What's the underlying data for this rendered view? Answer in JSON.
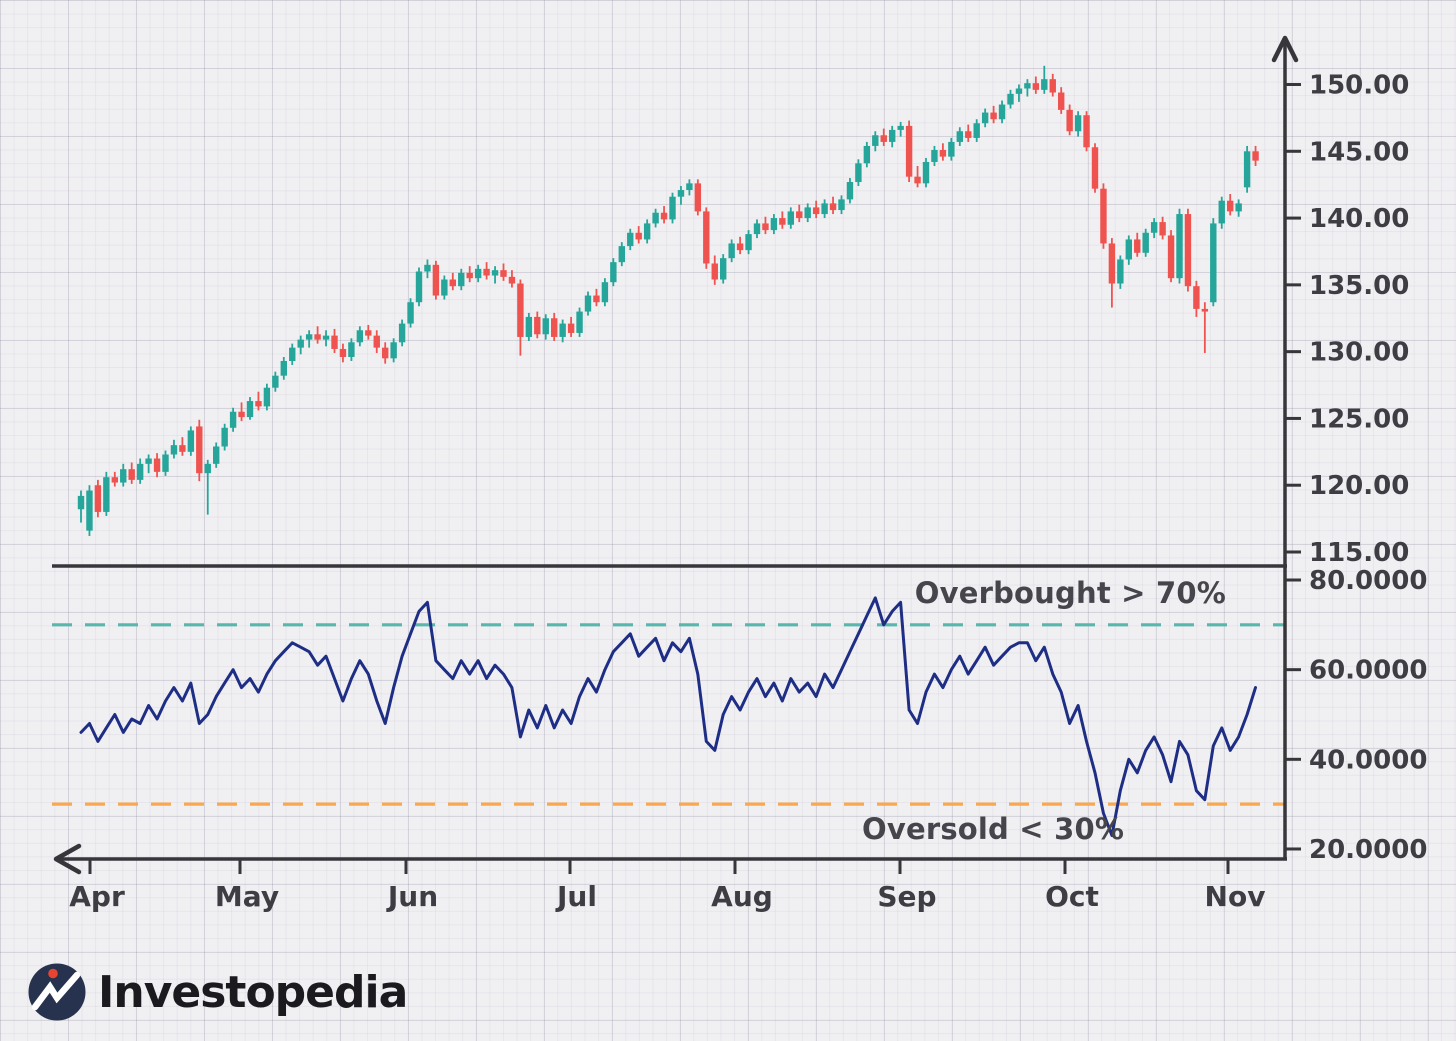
{
  "branding": {
    "logo_text": "Investopedia",
    "logo_navy": "#27324e",
    "logo_red": "#e8442f",
    "logo_text_color": "#1b1a1e"
  },
  "colors": {
    "background": "#f0eff2",
    "candle_up": "#26a69a",
    "candle_down": "#ef5350",
    "rsi_line": "#1f2e85",
    "overbought_line": "#58b7ac",
    "oversold_line": "#f9a84e",
    "axis": "#37363b",
    "tick_text": "#3e3d43"
  },
  "chart_data": {
    "type": "candlestick_with_rsi_line",
    "grid": "graph-paper background",
    "legend_position": "none",
    "x_axis": {
      "tick_labels": [
        "Apr",
        "May",
        "Jun",
        "Jul",
        "Aug",
        "Sep",
        "Oct",
        "Nov"
      ]
    },
    "price_panel": {
      "type": "candlestick",
      "ylim": [
        114,
        152.5
      ],
      "y_ticks": [
        {
          "v": 150,
          "label": "150.00"
        },
        {
          "v": 145,
          "label": "145.00"
        },
        {
          "v": 140,
          "label": "140.00"
        },
        {
          "v": 135,
          "label": "135.00"
        },
        {
          "v": 130,
          "label": "130.00"
        },
        {
          "v": 125,
          "label": "125.00"
        },
        {
          "v": 120,
          "label": "120.00"
        },
        {
          "v": 115,
          "label": "115.00"
        }
      ],
      "candles_ohlc": [
        [
          118.2,
          119.6,
          117.2,
          119.2
        ],
        [
          116.6,
          120.0,
          116.2,
          119.6
        ],
        [
          120.0,
          120.4,
          117.6,
          118.0
        ],
        [
          118.0,
          121.0,
          117.7,
          120.6
        ],
        [
          120.6,
          121.0,
          119.9,
          120.2
        ],
        [
          120.2,
          121.6,
          119.9,
          121.2
        ],
        [
          121.2,
          121.7,
          120.1,
          120.4
        ],
        [
          120.4,
          122.0,
          120.1,
          121.6
        ],
        [
          121.6,
          122.3,
          120.9,
          122.0
        ],
        [
          122.0,
          122.4,
          120.6,
          121.0
        ],
        [
          121.0,
          122.6,
          120.7,
          122.3
        ],
        [
          122.3,
          123.4,
          122.0,
          123.0
        ],
        [
          123.0,
          123.6,
          122.2,
          122.5
        ],
        [
          122.5,
          124.4,
          122.2,
          124.1
        ],
        [
          124.4,
          124.9,
          120.3,
          120.9
        ],
        [
          120.9,
          121.9,
          117.8,
          121.6
        ],
        [
          121.6,
          123.2,
          121.3,
          122.9
        ],
        [
          122.9,
          124.6,
          122.6,
          124.3
        ],
        [
          124.3,
          125.8,
          124.0,
          125.5
        ],
        [
          125.5,
          126.2,
          124.8,
          125.1
        ],
        [
          125.1,
          126.6,
          124.9,
          126.3
        ],
        [
          126.3,
          127.0,
          125.6,
          125.9
        ],
        [
          125.9,
          127.6,
          125.6,
          127.3
        ],
        [
          127.3,
          128.5,
          127.0,
          128.2
        ],
        [
          128.2,
          129.6,
          127.9,
          129.3
        ],
        [
          129.3,
          130.6,
          129.0,
          130.3
        ],
        [
          130.3,
          131.2,
          129.8,
          130.9
        ],
        [
          130.9,
          131.6,
          130.3,
          131.3
        ],
        [
          131.3,
          131.9,
          130.6,
          130.9
        ],
        [
          130.9,
          131.6,
          130.4,
          131.2
        ],
        [
          131.2,
          131.7,
          129.9,
          130.2
        ],
        [
          130.2,
          130.6,
          129.2,
          129.6
        ],
        [
          129.6,
          131.0,
          129.3,
          130.7
        ],
        [
          130.7,
          131.9,
          130.4,
          131.6
        ],
        [
          131.6,
          132.0,
          130.9,
          131.2
        ],
        [
          131.2,
          131.6,
          129.9,
          130.3
        ],
        [
          130.3,
          130.7,
          129.1,
          129.5
        ],
        [
          129.5,
          131.0,
          129.2,
          130.7
        ],
        [
          130.7,
          132.4,
          130.4,
          132.1
        ],
        [
          132.1,
          134.0,
          131.8,
          133.7
        ],
        [
          133.7,
          136.3,
          133.4,
          136.0
        ],
        [
          136.0,
          136.9,
          135.5,
          136.5
        ],
        [
          136.5,
          136.8,
          133.9,
          134.2
        ],
        [
          134.2,
          135.7,
          133.9,
          135.4
        ],
        [
          135.4,
          135.9,
          134.6,
          134.9
        ],
        [
          134.9,
          136.2,
          134.6,
          135.9
        ],
        [
          135.9,
          136.4,
          135.2,
          135.5
        ],
        [
          135.5,
          136.5,
          135.2,
          136.2
        ],
        [
          136.2,
          136.7,
          135.4,
          135.7
        ],
        [
          135.7,
          136.4,
          135.1,
          136.1
        ],
        [
          136.1,
          136.6,
          135.3,
          135.6
        ],
        [
          135.6,
          136.1,
          134.8,
          135.1
        ],
        [
          135.1,
          135.4,
          129.7,
          131.1
        ],
        [
          131.1,
          132.9,
          130.8,
          132.6
        ],
        [
          132.6,
          133.0,
          131.0,
          131.3
        ],
        [
          131.3,
          132.8,
          130.9,
          132.5
        ],
        [
          132.5,
          132.9,
          130.8,
          131.1
        ],
        [
          131.1,
          132.4,
          130.7,
          132.1
        ],
        [
          132.1,
          132.6,
          131.1,
          131.4
        ],
        [
          131.4,
          133.3,
          131.1,
          133.0
        ],
        [
          133.0,
          134.5,
          132.7,
          134.2
        ],
        [
          134.2,
          134.7,
          133.4,
          133.7
        ],
        [
          133.7,
          135.5,
          133.4,
          135.2
        ],
        [
          135.2,
          137.0,
          134.9,
          136.7
        ],
        [
          136.7,
          138.2,
          136.4,
          137.9
        ],
        [
          137.9,
          139.2,
          137.6,
          138.9
        ],
        [
          138.9,
          139.4,
          138.1,
          138.4
        ],
        [
          138.4,
          139.9,
          138.1,
          139.6
        ],
        [
          139.6,
          140.7,
          139.3,
          140.4
        ],
        [
          140.4,
          140.9,
          139.6,
          139.9
        ],
        [
          139.9,
          141.9,
          139.6,
          141.6
        ],
        [
          141.6,
          142.4,
          141.0,
          142.1
        ],
        [
          142.1,
          142.9,
          141.7,
          142.6
        ],
        [
          142.6,
          142.9,
          140.2,
          140.5
        ],
        [
          140.5,
          140.8,
          136.2,
          136.6
        ],
        [
          136.6,
          137.2,
          135.0,
          135.4
        ],
        [
          135.4,
          137.3,
          135.1,
          137.0
        ],
        [
          137.0,
          138.4,
          136.7,
          138.1
        ],
        [
          138.1,
          138.6,
          137.3,
          137.6
        ],
        [
          137.6,
          139.1,
          137.3,
          138.8
        ],
        [
          138.8,
          139.9,
          138.5,
          139.6
        ],
        [
          139.6,
          140.1,
          138.8,
          139.1
        ],
        [
          139.1,
          140.3,
          138.8,
          140.0
        ],
        [
          140.0,
          140.5,
          139.2,
          139.5
        ],
        [
          139.5,
          140.8,
          139.2,
          140.5
        ],
        [
          140.5,
          141.0,
          139.7,
          140.0
        ],
        [
          140.0,
          141.1,
          139.7,
          140.8
        ],
        [
          140.8,
          141.3,
          140.0,
          140.3
        ],
        [
          140.3,
          141.4,
          140.0,
          141.1
        ],
        [
          141.1,
          141.6,
          140.3,
          140.6
        ],
        [
          140.6,
          141.7,
          140.3,
          141.4
        ],
        [
          141.4,
          143.0,
          141.1,
          142.7
        ],
        [
          142.7,
          144.4,
          142.4,
          144.1
        ],
        [
          144.1,
          145.7,
          143.8,
          145.4
        ],
        [
          145.4,
          146.5,
          145.0,
          146.2
        ],
        [
          146.2,
          146.7,
          145.4,
          145.7
        ],
        [
          145.7,
          146.9,
          145.3,
          146.6
        ],
        [
          146.6,
          147.2,
          146.1,
          146.9
        ],
        [
          146.9,
          147.3,
          142.7,
          143.1
        ],
        [
          143.1,
          143.9,
          142.3,
          142.6
        ],
        [
          142.6,
          144.5,
          142.3,
          144.2
        ],
        [
          144.2,
          145.4,
          143.9,
          145.1
        ],
        [
          145.1,
          145.6,
          144.3,
          144.6
        ],
        [
          144.6,
          146.0,
          144.3,
          145.7
        ],
        [
          145.7,
          146.8,
          145.4,
          146.5
        ],
        [
          146.5,
          147.0,
          145.7,
          146.0
        ],
        [
          146.0,
          147.4,
          145.7,
          147.1
        ],
        [
          147.1,
          148.2,
          146.8,
          147.9
        ],
        [
          147.9,
          148.4,
          147.1,
          147.4
        ],
        [
          147.4,
          148.8,
          147.1,
          148.5
        ],
        [
          148.5,
          149.6,
          148.2,
          149.3
        ],
        [
          149.3,
          150.0,
          148.7,
          149.7
        ],
        [
          149.7,
          150.4,
          149.1,
          150.1
        ],
        [
          150.1,
          150.6,
          149.3,
          149.6
        ],
        [
          149.6,
          151.4,
          149.3,
          150.4
        ],
        [
          150.4,
          150.8,
          149.1,
          149.4
        ],
        [
          149.4,
          149.8,
          147.8,
          148.1
        ],
        [
          148.1,
          148.5,
          146.2,
          146.5
        ],
        [
          146.5,
          148.0,
          146.1,
          147.7
        ],
        [
          147.7,
          148.0,
          145.0,
          145.3
        ],
        [
          145.3,
          145.6,
          141.9,
          142.2
        ],
        [
          142.2,
          142.6,
          137.7,
          138.1
        ],
        [
          138.1,
          138.5,
          133.3,
          135.1
        ],
        [
          135.1,
          137.2,
          134.7,
          136.9
        ],
        [
          136.9,
          138.7,
          136.5,
          138.4
        ],
        [
          138.4,
          138.9,
          137.1,
          137.4
        ],
        [
          137.4,
          139.2,
          137.1,
          138.9
        ],
        [
          138.9,
          140.0,
          138.5,
          139.7
        ],
        [
          139.7,
          140.1,
          138.4,
          138.7
        ],
        [
          138.7,
          139.1,
          135.2,
          135.5
        ],
        [
          135.5,
          140.7,
          135.1,
          140.3
        ],
        [
          140.3,
          140.7,
          134.5,
          134.9
        ],
        [
          134.9,
          135.3,
          132.6,
          133.2
        ],
        [
          133.2,
          133.7,
          129.9,
          133.0
        ],
        [
          133.7,
          140.0,
          133.4,
          139.6
        ],
        [
          139.6,
          141.6,
          139.2,
          141.3
        ],
        [
          141.3,
          141.8,
          140.2,
          140.5
        ],
        [
          140.5,
          141.4,
          140.1,
          141.1
        ],
        [
          142.3,
          145.4,
          141.9,
          145.0
        ],
        [
          145.0,
          145.4,
          143.9,
          144.3
        ]
      ]
    },
    "rsi_panel": {
      "type": "line",
      "indicator": "RSI",
      "ylim": [
        17,
        82
      ],
      "y_ticks": [
        {
          "v": 80,
          "label": "80.0000"
        },
        {
          "v": 60,
          "label": "60.0000"
        },
        {
          "v": 40,
          "label": "40.0000"
        },
        {
          "v": 20,
          "label": "20.0000"
        }
      ],
      "overbought_level": 70,
      "oversold_level": 30,
      "overbought_label": "Overbought > 70%",
      "oversold_label": "Oversold < 30%",
      "values": [
        46,
        48,
        44,
        47,
        50,
        46,
        49,
        48,
        52,
        49,
        53,
        56,
        53,
        57,
        48,
        50,
        54,
        57,
        60,
        56,
        58,
        55,
        59,
        62,
        64,
        66,
        65,
        64,
        61,
        63,
        58,
        53,
        58,
        62,
        59,
        53,
        48,
        56,
        63,
        68,
        73,
        75,
        62,
        60,
        58,
        62,
        59,
        62,
        58,
        61,
        59,
        56,
        45,
        51,
        47,
        52,
        47,
        51,
        48,
        54,
        58,
        55,
        60,
        64,
        66,
        68,
        63,
        65,
        67,
        62,
        66,
        64,
        67,
        59,
        44,
        42,
        50,
        54,
        51,
        55,
        58,
        54,
        57,
        53,
        58,
        55,
        57,
        54,
        59,
        56,
        60,
        64,
        68,
        72,
        76,
        70,
        73,
        75,
        51,
        48,
        55,
        59,
        56,
        60,
        63,
        59,
        62,
        65,
        61,
        63,
        65,
        66,
        66,
        62,
        65,
        59,
        55,
        48,
        52,
        44,
        37,
        28,
        23,
        33,
        40,
        37,
        42,
        45,
        41,
        35,
        44,
        41,
        33,
        31,
        43,
        47,
        42,
        45,
        50,
        56
      ]
    }
  }
}
